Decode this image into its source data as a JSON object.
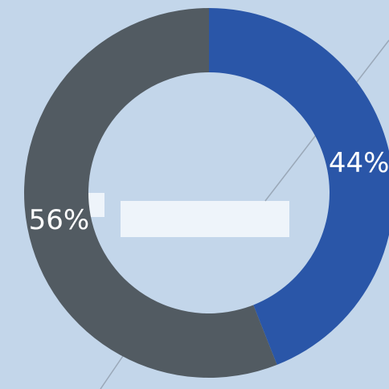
{
  "chart_data": {
    "type": "pie",
    "donut": true,
    "title": "",
    "categories": [
      "",
      ""
    ],
    "values": [
      44,
      56
    ],
    "labels": [
      "44%",
      "56%"
    ],
    "colors": [
      "#2a56a8",
      "#525b62"
    ],
    "legend": "none"
  },
  "background": {
    "base_color": "#dbe7f3",
    "texture_color": "#c3d6ea",
    "highlight_color": "#eef4fa"
  }
}
